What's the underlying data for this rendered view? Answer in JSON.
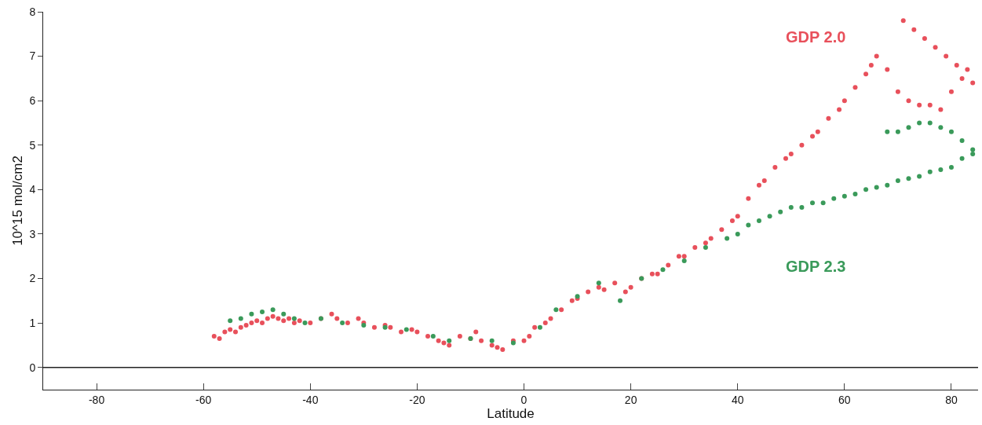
{
  "chart_data": {
    "type": "scatter",
    "xlabel": "Latitude",
    "ylabel": "10^15 mol/cm2",
    "xlim": [
      -90,
      85
    ],
    "ylim": [
      -0.5,
      8
    ],
    "xticks": [
      -80,
      -60,
      -40,
      -20,
      0,
      20,
      40,
      60,
      80
    ],
    "yticks": [
      0,
      1,
      2,
      3,
      4,
      5,
      6,
      7,
      8
    ],
    "legend": false,
    "marker": "circle",
    "ref_lines": [
      {
        "axis": "y",
        "value": 0,
        "color": "#222222"
      }
    ],
    "series": [
      {
        "name": "GDP 2.0",
        "color": "#e8505b",
        "x": [
          -58,
          -57,
          -56,
          -55,
          -54,
          -53,
          -52,
          -51,
          -50,
          -49,
          -48,
          -47,
          -46,
          -45,
          -44,
          -43,
          -42,
          -40,
          -38,
          -36,
          -35,
          -33,
          -31,
          -30,
          -28,
          -26,
          -25,
          -23,
          -21,
          -20,
          -18,
          -16,
          -15,
          -14,
          -12,
          -10,
          -9,
          -8,
          -6,
          -5,
          -4,
          -2,
          0,
          1,
          2,
          4,
          5,
          7,
          9,
          10,
          12,
          14,
          15,
          17,
          19,
          20,
          22,
          24,
          25,
          27,
          29,
          30,
          32,
          34,
          35,
          37,
          39,
          40,
          42,
          44,
          45,
          47,
          49,
          50,
          52,
          54,
          55,
          57,
          59,
          60,
          62,
          64,
          65,
          66,
          68,
          70,
          72,
          74,
          76,
          78,
          80,
          82,
          84,
          71,
          73,
          75,
          77,
          79,
          81,
          83
        ],
        "values": [
          0.7,
          0.65,
          0.8,
          0.85,
          0.8,
          0.9,
          0.95,
          1.0,
          1.05,
          1.0,
          1.1,
          1.15,
          1.1,
          1.05,
          1.1,
          1.0,
          1.05,
          1.0,
          1.1,
          1.2,
          1.1,
          1.0,
          1.1,
          1.0,
          0.9,
          0.95,
          0.9,
          0.8,
          0.85,
          0.8,
          0.7,
          0.6,
          0.55,
          0.5,
          0.7,
          0.65,
          0.8,
          0.6,
          0.5,
          0.45,
          0.4,
          0.6,
          0.6,
          0.7,
          0.9,
          1.0,
          1.1,
          1.3,
          1.5,
          1.55,
          1.7,
          1.8,
          1.75,
          1.9,
          1.7,
          1.8,
          2.0,
          2.1,
          2.1,
          2.3,
          2.5,
          2.5,
          2.7,
          2.8,
          2.9,
          3.1,
          3.3,
          3.4,
          3.8,
          4.1,
          4.2,
          4.5,
          4.7,
          4.8,
          5.0,
          5.2,
          5.3,
          5.6,
          5.8,
          6.0,
          6.3,
          6.6,
          6.8,
          7.0,
          6.7,
          6.2,
          6.0,
          5.9,
          5.9,
          5.8,
          6.2,
          6.5,
          6.4,
          7.8,
          7.6,
          7.4,
          7.2,
          7.0,
          6.8,
          6.7
        ]
      },
      {
        "name": "GDP 2.3",
        "color": "#3a9a5a",
        "x": [
          -55,
          -53,
          -51,
          -49,
          -47,
          -45,
          -43,
          -41,
          -38,
          -34,
          -30,
          -26,
          -22,
          -17,
          -14,
          -10,
          -6,
          -2,
          3,
          6,
          10,
          14,
          18,
          22,
          26,
          30,
          34,
          38,
          40,
          42,
          44,
          46,
          48,
          50,
          52,
          54,
          56,
          58,
          60,
          62,
          64,
          66,
          68,
          70,
          72,
          74,
          76,
          78,
          80,
          82,
          84,
          68,
          70,
          72,
          74,
          76,
          78,
          80,
          82,
          84
        ],
        "values": [
          1.05,
          1.1,
          1.2,
          1.25,
          1.3,
          1.2,
          1.1,
          1.0,
          1.1,
          1.0,
          0.95,
          0.9,
          0.85,
          0.7,
          0.6,
          0.65,
          0.6,
          0.55,
          0.9,
          1.3,
          1.6,
          1.9,
          1.5,
          2.0,
          2.2,
          2.4,
          2.7,
          2.9,
          3.0,
          3.2,
          3.3,
          3.4,
          3.5,
          3.6,
          3.6,
          3.7,
          3.7,
          3.8,
          3.85,
          3.9,
          4.0,
          4.05,
          4.1,
          4.2,
          4.25,
          4.3,
          4.4,
          4.45,
          4.5,
          4.7,
          4.8,
          5.3,
          5.3,
          5.4,
          5.5,
          5.5,
          5.4,
          5.3,
          5.1,
          4.9
        ]
      }
    ]
  }
}
